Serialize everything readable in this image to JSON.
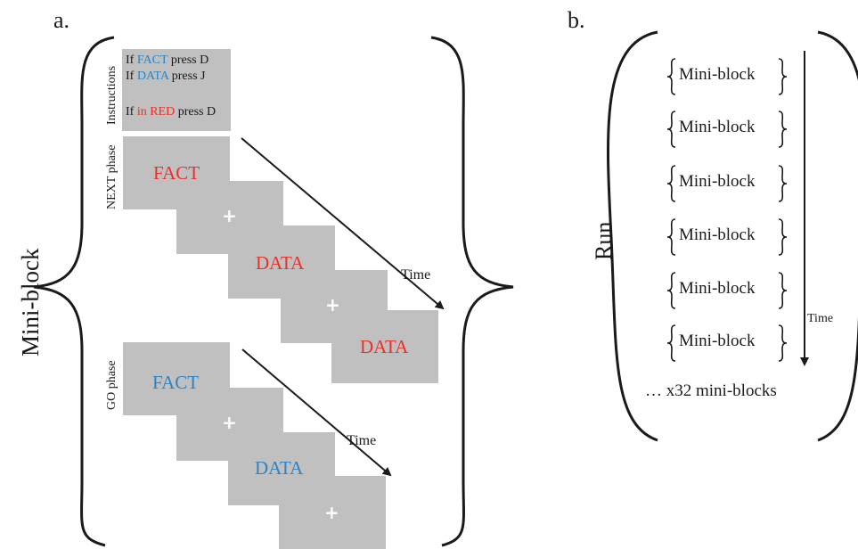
{
  "panel_a": {
    "label": "a.",
    "side_label": "Mini-block",
    "instructions": {
      "section_label": "Instructions",
      "line1": {
        "prefix": "If ",
        "keyword": "FACT",
        "suffix": " press D"
      },
      "line2": {
        "prefix": "If ",
        "keyword": "DATA",
        "suffix": " press J"
      },
      "line3": {
        "prefix": "If ",
        "keyword": "in RED",
        "suffix": " press D"
      }
    },
    "next_phase": {
      "label": "NEXT phase",
      "stimuli": [
        "FACT",
        "DATA",
        "DATA"
      ],
      "fixation": "+",
      "time_label": "Time"
    },
    "go_phase": {
      "label": "GO phase",
      "stimuli": [
        "FACT",
        "DATA"
      ],
      "fixation": "+",
      "time_label": "Time"
    }
  },
  "panel_b": {
    "label": "b.",
    "side_label": "Run",
    "mini_blocks": [
      "Mini-block",
      "Mini-block",
      "Mini-block",
      "Mini-block",
      "Mini-block",
      "Mini-block"
    ],
    "more_label": "… x32 mini-blocks",
    "time_label": "Time"
  },
  "colors": {
    "stimulus_red": "#e8312a",
    "stimulus_blue": "#2d83c4",
    "screen_gray": "#c0c0c0"
  }
}
